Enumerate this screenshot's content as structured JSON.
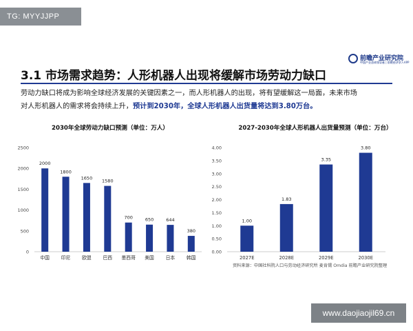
{
  "tag": "TG: MYYJJPP",
  "logo": {
    "name": "前瞻产业研究院",
    "sub": "中国产业咨询领导者 | 前瞻经济学人APP"
  },
  "title": "3.1 市场需求趋势：人形机器人出现将缓解市场劳动力缺口",
  "paragraph": {
    "line1": "劳动力缺口将成为影响全球经济发展的关键因素之一，而人形机器人的出现，将有望缓解这一局面，未来市场",
    "line2_plain": "对人形机器人的需求将会持续上升，",
    "line2_highlight": "预计到2030年，全球人形机器人出货量将达到3.80万台。"
  },
  "chart_data": [
    {
      "type": "bar",
      "title": "2030年全球劳动力缺口预测（单位：万人）",
      "categories": [
        "中国",
        "印尼",
        "欧盟",
        "巴西",
        "墨西哥",
        "美国",
        "日本",
        "韩国"
      ],
      "values": [
        2000,
        1800,
        1650,
        1580,
        700,
        650,
        644,
        380
      ],
      "yticks": [
        "0",
        "500",
        "1000",
        "1500",
        "2000",
        "2500"
      ],
      "ylim": [
        0,
        2500
      ],
      "color": "#1f3a93",
      "grid": false
    },
    {
      "type": "bar",
      "title": "2027-2030年全球人形机器人出货量预测（单位：万台）",
      "categories": [
        "2027E",
        "2028E",
        "2029E",
        "2030E"
      ],
      "values": [
        1.0,
        1.83,
        3.35,
        3.8
      ],
      "labels": [
        "1.00",
        "1.83",
        "3.35",
        "3.80"
      ],
      "yticks": [
        "0.00",
        "0.50",
        "1.00",
        "1.50",
        "2.00",
        "2.50",
        "3.00",
        "3.50",
        "4.00"
      ],
      "ylim": [
        0,
        4
      ],
      "color": "#1f3a93",
      "grid": false
    }
  ],
  "source": "资料来源：中国社科院人口与劳动经济研究所 麦肯锡 Omdia 前瞻产业研究院整理",
  "watermark": "www.daojiaojil69.cn"
}
